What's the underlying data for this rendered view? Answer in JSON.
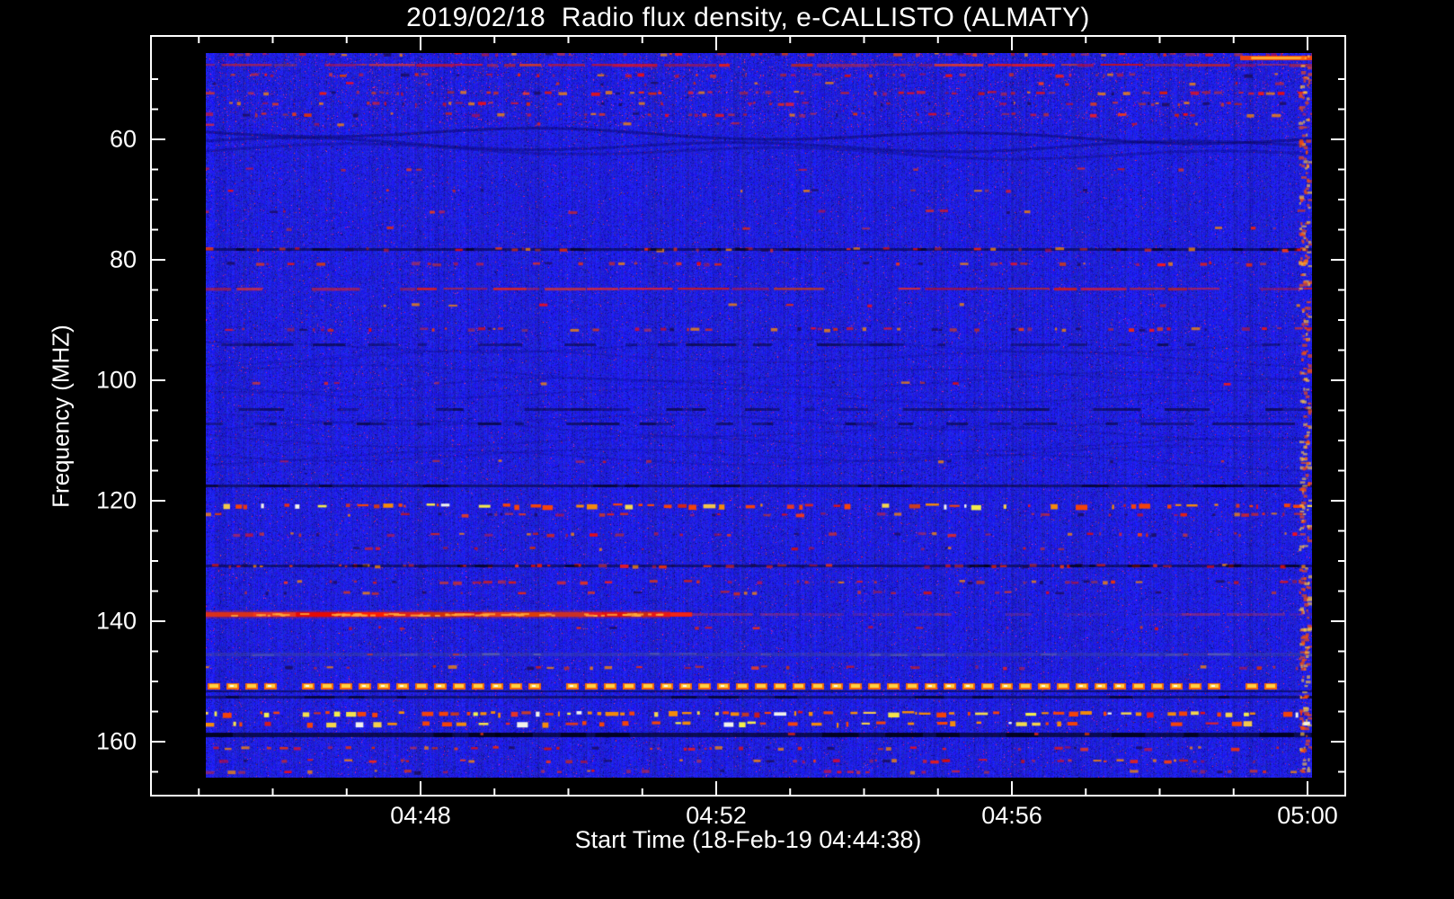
{
  "chart_data": {
    "type": "heatmap",
    "title": "2019/02/18  Radio flux density, e-CALLISTO (ALMATY)",
    "xlabel": "Start Time (18-Feb-19 04:44:38)",
    "ylabel": "Frequency (MHZ)",
    "x_ticks": [
      "04:48",
      "04:52",
      "04:56",
      "05:00"
    ],
    "x_major_minutes": [
      48,
      52,
      56,
      60
    ],
    "x_minor_step_min": 1,
    "x_start_time": "04:44:38",
    "y_ticks": [
      60,
      80,
      100,
      120,
      140,
      160
    ],
    "y_minor_step": 5,
    "y_range": [
      45.7,
      166.0
    ],
    "y_axis_inverted": true,
    "legend": "none",
    "grid": false,
    "colors": {
      "background": "#000000",
      "frame": "#ffffff",
      "text": "#ffffff",
      "base_flux": "#2020dd",
      "interference_palette": [
        "#ff2000",
        "#ff8800",
        "#ffdd44",
        "#ffffff"
      ],
      "low_flux": "#000022"
    },
    "bands": [
      {
        "freq": 45.9,
        "kind": "speckle_red",
        "density": 0.45
      },
      {
        "freq": 46.4,
        "kind": "edge_streak"
      },
      {
        "freq": 47.6,
        "kind": "red_line"
      },
      {
        "freq": 49.3,
        "kind": "speckle_red",
        "density": 0.35
      },
      {
        "freq": 50.8,
        "kind": "speckle_faint"
      },
      {
        "freq": 52.2,
        "kind": "speckle_red",
        "density": 0.4
      },
      {
        "freq": 54.0,
        "kind": "speckle_red",
        "density": 0.35
      },
      {
        "freq": 55.8,
        "kind": "speckle_red",
        "density": 0.3
      },
      {
        "freq": 57.5,
        "kind": "speckle_faint"
      },
      {
        "freq": 60.8,
        "kind": "wavy_dark"
      },
      {
        "freq": 65.0,
        "kind": "speckle_faint"
      },
      {
        "freq": 68.5,
        "kind": "speckle_faint"
      },
      {
        "freq": 72.0,
        "kind": "speckle_faint"
      },
      {
        "freq": 74.8,
        "kind": "speckle_faint"
      },
      {
        "freq": 78.2,
        "kind": "dense_mixed"
      },
      {
        "freq": 80.6,
        "kind": "speckle_red",
        "density": 0.25
      },
      {
        "freq": 84.8,
        "kind": "red_line"
      },
      {
        "freq": 87.5,
        "kind": "speckle_faint"
      },
      {
        "freq": 91.5,
        "kind": "speckle_red",
        "density": 0.45
      },
      {
        "freq": 94.0,
        "kind": "dark_speckle",
        "density": 0.5
      },
      {
        "freq": 98.5,
        "kind": "wavy_faint"
      },
      {
        "freq": 100.5,
        "kind": "speckle_faint"
      },
      {
        "freq": 104.8,
        "kind": "dark_speckle",
        "density": 0.6
      },
      {
        "freq": 107.2,
        "kind": "dark_speckle",
        "density": 0.45
      },
      {
        "freq": 110.0,
        "kind": "wavy_faint"
      },
      {
        "freq": 113.5,
        "kind": "speckle_faint"
      },
      {
        "freq": 117.5,
        "kind": "dark_line"
      },
      {
        "freq": 120.8,
        "kind": "speckle_bright",
        "density": 0.5
      },
      {
        "freq": 122.3,
        "kind": "speckle_red",
        "density": 0.25
      },
      {
        "freq": 125.6,
        "kind": "speckle_red",
        "density": 0.3
      },
      {
        "freq": 128.0,
        "kind": "speckle_faint"
      },
      {
        "freq": 130.8,
        "kind": "dense_mixed"
      },
      {
        "freq": 133.5,
        "kind": "speckle_red",
        "density": 0.4
      },
      {
        "freq": 135.2,
        "kind": "speckle_red",
        "density": 0.25
      },
      {
        "freq": 138.8,
        "kind": "red_line_strong"
      },
      {
        "freq": 141.0,
        "kind": "speckle_faint"
      },
      {
        "freq": 145.5,
        "kind": "dark_speckle_grey"
      },
      {
        "freq": 147.6,
        "kind": "speckle_red",
        "density": 0.25
      },
      {
        "freq": 150.8,
        "kind": "dash_bright"
      },
      {
        "freq": 152.6,
        "kind": "dark_line"
      },
      {
        "freq": 155.3,
        "kind": "speckle_bright",
        "density": 0.7
      },
      {
        "freq": 156.9,
        "kind": "speckle_bright",
        "density": 0.45
      },
      {
        "freq": 158.9,
        "kind": "dark_line_thick"
      },
      {
        "freq": 161.0,
        "kind": "speckle_red",
        "density": 0.45
      },
      {
        "freq": 163.2,
        "kind": "speckle_red",
        "density": 0.35
      },
      {
        "freq": 165.0,
        "kind": "speckle_red",
        "density": 0.3
      }
    ]
  }
}
